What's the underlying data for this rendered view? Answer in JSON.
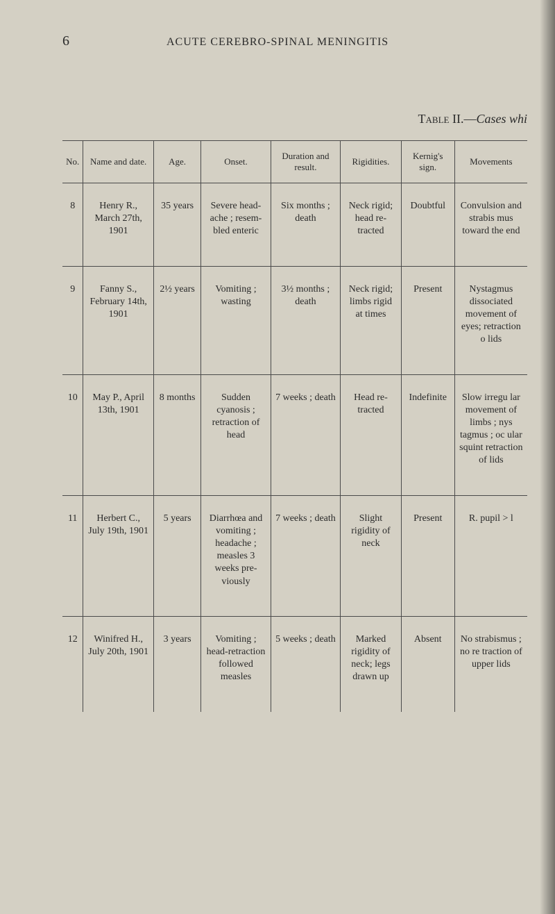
{
  "pageNumber": "6",
  "runningHead": "ACUTE CEREBRO-SPINAL MENINGITIS",
  "tableCaption": {
    "label": "Table II.—",
    "italic": "Cases whi"
  },
  "headers": {
    "no": "No.",
    "name": "Name and date.",
    "age": "Age.",
    "onset": "Onset.",
    "duration": "Duration and result.",
    "rigidities": "Rigidities.",
    "kernig": "Kernig's sign.",
    "movements": "Movements"
  },
  "rows": [
    {
      "no": "8",
      "name": "Henry R., March 27th, 1901",
      "age": "35 years",
      "onset": "Severe head­ache ; resem­bled enteric",
      "duration": "Six months ; death",
      "rigidities": "Neck rigid; head re­tracted",
      "kernig": "Doubtful",
      "movements": "Convulsion and strabis mus toward the end"
    },
    {
      "no": "9",
      "name": "Fanny S., February 14th, 1901",
      "age": "2½ years",
      "onset": "Vomiting ; wasting",
      "duration": "3½ months ; death",
      "rigidities": "Neck rigid; limbs rigid at times",
      "kernig": "Present",
      "movements": "Nystagmus dissociated movement of eyes; retraction o lids"
    },
    {
      "no": "10",
      "name": "May P., April 13th, 1901",
      "age": "8 months",
      "onset": "Sudden cyanosis ; retraction of head",
      "duration": "7 weeks ; death",
      "rigidities": "Head re­tracted",
      "kernig": "Indefinite",
      "movements": "Slow irregu lar move­ment of limbs ; nys tagmus ; oc ular squint retraction of lids"
    },
    {
      "no": "11",
      "name": "Herbert C., July 19th, 1901",
      "age": "5 years",
      "onset": "Diarrhœa and vomit­ing ; head­ache ; measles 3 weeks pre­viously",
      "duration": "7 weeks ; death",
      "rigidities": "Slight rigidity of neck",
      "kernig": "Present",
      "movements": "R. pupil > l"
    },
    {
      "no": "12",
      "name": "Winifred H., July 20th, 1901",
      "age": "3 years",
      "onset": "Vomiting ; head-re­traction followed measles",
      "duration": "5 weeks ; death",
      "rigidities": "Marked rigidity of neck; legs drawn up",
      "kernig": "Absent",
      "movements": "No strabis­mus ; no re traction of upper lids"
    }
  ],
  "colors": {
    "background": "#d4d0c4",
    "text": "#2a2a2a",
    "border": "#4a4a4a"
  }
}
